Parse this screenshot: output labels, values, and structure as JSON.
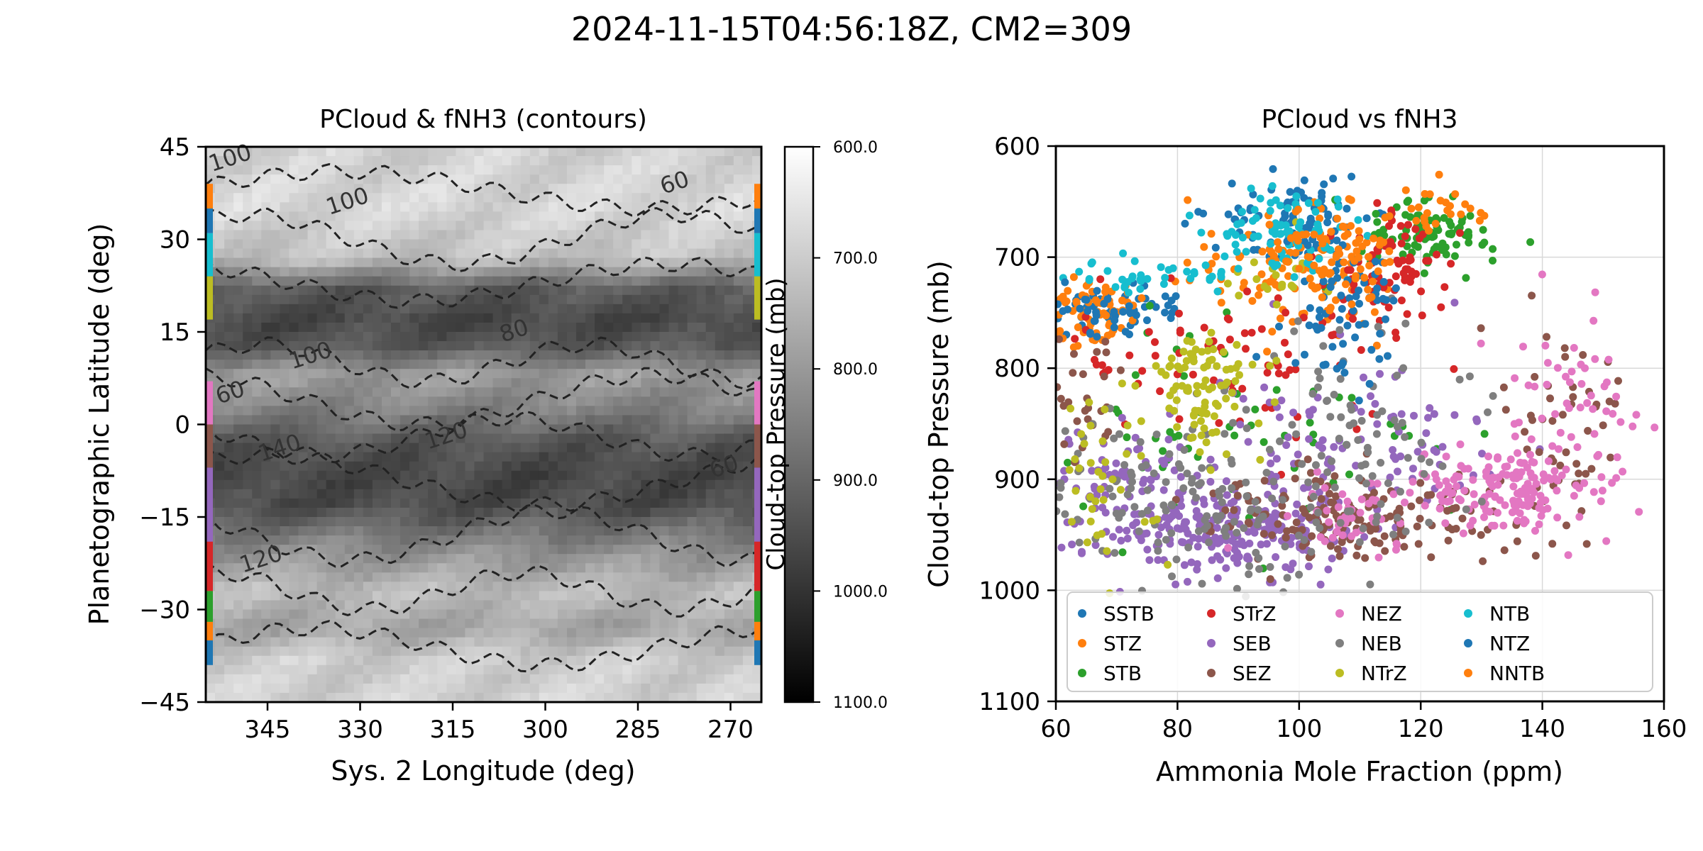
{
  "figure": {
    "suptitle": "2024-11-15T04:56:18Z, CM2=309"
  },
  "chart_data": [
    {
      "type": "heatmap",
      "title": "PCloud & fNH3 (contours)",
      "xlabel": "Sys. 2 Longitude (deg)",
      "ylabel": "Planetographic Latitude (deg)",
      "xlim": [
        355,
        265
      ],
      "ylim": [
        -45,
        45
      ],
      "xticks": [
        345,
        330,
        315,
        300,
        285,
        270
      ],
      "yticks": [
        -45,
        -30,
        -15,
        0,
        15,
        30,
        45
      ],
      "colorbar": {
        "label": "Cloud-top Pressure (mb)",
        "range": [
          600,
          1100
        ],
        "ticks": [
          "600.0",
          "700.0",
          "800.0",
          "900.0",
          "1000.0",
          "1100.0"
        ],
        "colormap": "gray_r"
      },
      "pressure_profile": [
        {
          "lat": -45,
          "p": 690
        },
        {
          "lat": -38,
          "p": 700
        },
        {
          "lat": -33,
          "p": 780
        },
        {
          "lat": -27,
          "p": 730
        },
        {
          "lat": -20,
          "p": 830
        },
        {
          "lat": -13,
          "p": 950
        },
        {
          "lat": -8,
          "p": 960
        },
        {
          "lat": -3,
          "p": 930
        },
        {
          "lat": 3,
          "p": 840
        },
        {
          "lat": 8,
          "p": 790
        },
        {
          "lat": 13,
          "p": 930
        },
        {
          "lat": 17,
          "p": 960
        },
        {
          "lat": 22,
          "p": 920
        },
        {
          "lat": 27,
          "p": 720
        },
        {
          "lat": 35,
          "p": 680
        },
        {
          "lat": 45,
          "p": 690
        }
      ],
      "contour_labels": [
        {
          "text": "100",
          "lon": 351,
          "lat": 43
        },
        {
          "text": "100",
          "lon": 332,
          "lat": 36
        },
        {
          "text": "60",
          "lon": 279,
          "lat": 39
        },
        {
          "text": "80",
          "lon": 305,
          "lat": 15
        },
        {
          "text": "100",
          "lon": 338,
          "lat": 11
        },
        {
          "text": "60",
          "lon": 351,
          "lat": 5
        },
        {
          "text": "140",
          "lon": 343,
          "lat": -4
        },
        {
          "text": "120",
          "lon": 316,
          "lat": -2
        },
        {
          "text": "60",
          "lon": 271,
          "lat": -7
        },
        {
          "text": "120",
          "lon": 346,
          "lat": -22
        }
      ],
      "band_markers": [
        {
          "band": "NNTB",
          "lat_min": 35,
          "lat_max": 39,
          "color": "#ff7f0e"
        },
        {
          "band": "NTZ",
          "lat_min": 31,
          "lat_max": 35,
          "color": "#1f77b4"
        },
        {
          "band": "NTB",
          "lat_min": 24,
          "lat_max": 31,
          "color": "#17becf"
        },
        {
          "band": "NTrZ",
          "lat_min": 17,
          "lat_max": 24,
          "color": "#bcbd22"
        },
        {
          "band": "NEZ",
          "lat_min": 0,
          "lat_max": 7,
          "color": "#e377c2"
        },
        {
          "band": "SEZ",
          "lat_min": -7,
          "lat_max": 0,
          "color": "#8c564b"
        },
        {
          "band": "SEB",
          "lat_min": -19,
          "lat_max": -7,
          "color": "#9467bd"
        },
        {
          "band": "STrZ",
          "lat_min": -27,
          "lat_max": -19,
          "color": "#d62728"
        },
        {
          "band": "STB",
          "lat_min": -32,
          "lat_max": -27,
          "color": "#2ca02c"
        },
        {
          "band": "STZ",
          "lat_min": -35,
          "lat_max": -32,
          "color": "#ff7f0e"
        },
        {
          "band": "SSTB",
          "lat_min": -39,
          "lat_max": -35,
          "color": "#1f77b4"
        }
      ]
    },
    {
      "type": "scatter",
      "title": "PCloud vs fNH3",
      "xlabel": "Ammonia Mole Fraction (ppm)",
      "ylabel": "Cloud-top Pressure (mb)",
      "xlim": [
        60,
        160
      ],
      "ylim": [
        1100,
        600
      ],
      "xticks": [
        60,
        80,
        100,
        120,
        140,
        160
      ],
      "yticks": [
        600,
        700,
        800,
        900,
        1000,
        1100
      ],
      "grid": true,
      "legend": {
        "placement": "lower-center",
        "ncol": 4
      },
      "series": [
        {
          "name": "SSTB",
          "color": "#1f77b4",
          "clusters": [
            {
              "cx": 100,
              "cy": 665,
              "sx": 6,
              "sy": 20,
              "n": 90
            },
            {
              "cx": 70,
              "cy": 745,
              "sx": 7,
              "sy": 12,
              "n": 40
            }
          ]
        },
        {
          "name": "STZ",
          "color": "#ff7f0e",
          "clusters": [
            {
              "cx": 66,
              "cy": 750,
              "sx": 5,
              "sy": 15,
              "n": 80
            },
            {
              "cx": 100,
              "cy": 720,
              "sx": 9,
              "sy": 30,
              "n": 90
            }
          ]
        },
        {
          "name": "STB",
          "color": "#2ca02c",
          "clusters": [
            {
              "cx": 122,
              "cy": 680,
              "sx": 5,
              "sy": 15,
              "n": 90
            },
            {
              "cx": 90,
              "cy": 860,
              "sx": 18,
              "sy": 50,
              "n": 60
            }
          ]
        },
        {
          "name": "STrZ",
          "color": "#d62728",
          "clusters": [
            {
              "cx": 115,
              "cy": 710,
              "sx": 5,
              "sy": 25,
              "n": 70
            },
            {
              "cx": 88,
              "cy": 790,
              "sx": 15,
              "sy": 40,
              "n": 80
            }
          ]
        },
        {
          "name": "SEB",
          "color": "#9467bd",
          "clusters": [
            {
              "cx": 90,
              "cy": 945,
              "sx": 9,
              "sy": 20,
              "n": 230
            },
            {
              "cx": 70,
              "cy": 915,
              "sx": 6,
              "sy": 30,
              "n": 90
            },
            {
              "cx": 110,
              "cy": 860,
              "sx": 12,
              "sy": 45,
              "n": 90
            }
          ]
        },
        {
          "name": "SEZ",
          "color": "#8c564b",
          "clusters": [
            {
              "cx": 110,
              "cy": 935,
              "sx": 13,
              "sy": 20,
              "n": 170
            },
            {
              "cx": 142,
              "cy": 850,
              "sx": 7,
              "sy": 50,
              "n": 50
            },
            {
              "cx": 65,
              "cy": 830,
              "sx": 3,
              "sy": 25,
              "n": 30
            }
          ]
        },
        {
          "name": "NEZ",
          "color": "#e377c2",
          "clusters": [
            {
              "cx": 135,
              "cy": 910,
              "sx": 7,
              "sy": 20,
              "n": 150
            },
            {
              "cx": 145,
              "cy": 830,
              "sx": 8,
              "sy": 45,
              "n": 60
            },
            {
              "cx": 110,
              "cy": 930,
              "sx": 10,
              "sy": 20,
              "n": 50
            }
          ]
        },
        {
          "name": "NEB",
          "color": "#7f7f7f",
          "clusters": [
            {
              "cx": 82,
              "cy": 920,
              "sx": 15,
              "sy": 40,
              "n": 150
            },
            {
              "cx": 110,
              "cy": 860,
              "sx": 10,
              "sy": 50,
              "n": 80
            }
          ]
        },
        {
          "name": "NTrZ",
          "color": "#bcbd22",
          "clusters": [
            {
              "cx": 84,
              "cy": 815,
              "sx": 5,
              "sy": 30,
              "n": 90
            },
            {
              "cx": 68,
              "cy": 900,
              "sx": 5,
              "sy": 40,
              "n": 40
            },
            {
              "cx": 96,
              "cy": 715,
              "sx": 4,
              "sy": 15,
              "n": 20
            }
          ]
        },
        {
          "name": "NTB",
          "color": "#17becf",
          "clusters": [
            {
              "cx": 97,
              "cy": 678,
              "sx": 6,
              "sy": 15,
              "n": 80
            },
            {
              "cx": 75,
              "cy": 715,
              "sx": 8,
              "sy": 10,
              "n": 40
            }
          ]
        },
        {
          "name": "NTZ",
          "color": "#1f77b4",
          "clusters": [
            {
              "cx": 108,
              "cy": 740,
              "sx": 5,
              "sy": 30,
              "n": 70
            },
            {
              "cx": 66,
              "cy": 750,
              "sx": 4,
              "sy": 12,
              "n": 30
            }
          ]
        },
        {
          "name": "NNTB",
          "color": "#ff7f0e",
          "clusters": [
            {
              "cx": 106,
              "cy": 700,
              "sx": 6,
              "sy": 20,
              "n": 70
            },
            {
              "cx": 122,
              "cy": 660,
              "sx": 5,
              "sy": 10,
              "n": 30
            }
          ]
        }
      ]
    }
  ]
}
